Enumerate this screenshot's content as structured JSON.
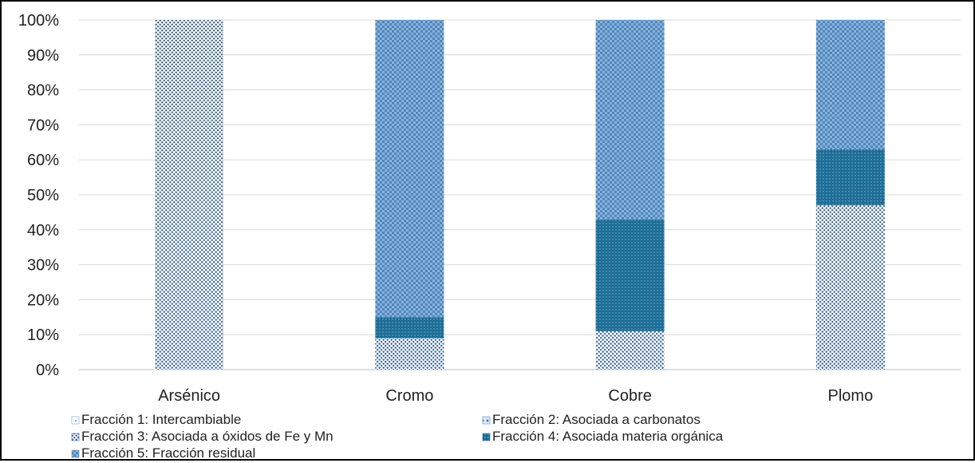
{
  "chart_data": {
    "type": "bar",
    "stacked": true,
    "percent": true,
    "title": "",
    "xlabel": "",
    "ylabel": "",
    "ylim": [
      0,
      100
    ],
    "yticks": [
      "0%",
      "10%",
      "20%",
      "30%",
      "40%",
      "50%",
      "60%",
      "70%",
      "80%",
      "90%",
      "100%"
    ],
    "grid": true,
    "legend_position": "bottom",
    "categories": [
      "Arsénico",
      "Cromo",
      "Cobre",
      "Plomo"
    ],
    "series": [
      {
        "name": "Fracción 1: Intercambiable",
        "values": [
          0,
          0,
          0,
          0
        ],
        "color": "#5b8fc4",
        "pattern": "light-dots"
      },
      {
        "name": "Fracción 2: Asociada a carbonatos",
        "values": [
          0,
          0,
          0,
          0
        ],
        "color": "#3f7fb5",
        "pattern": "diamond-dots"
      },
      {
        "name": "Fracción 3: Asociada a óxidos de Fe y Mn",
        "values": [
          100,
          9,
          11,
          47
        ],
        "color": "#1f4e82",
        "pattern": "dense-dots"
      },
      {
        "name": "Fracción 4: Asociada materia orgánica",
        "values": [
          0,
          6,
          32,
          16
        ],
        "color": "#1d6e97",
        "pattern": "solid-dots"
      },
      {
        "name": "Fracción 5: Fracción residual",
        "values": [
          0,
          85,
          57,
          37
        ],
        "color": "#4f86bd",
        "pattern": "checker"
      }
    ]
  }
}
